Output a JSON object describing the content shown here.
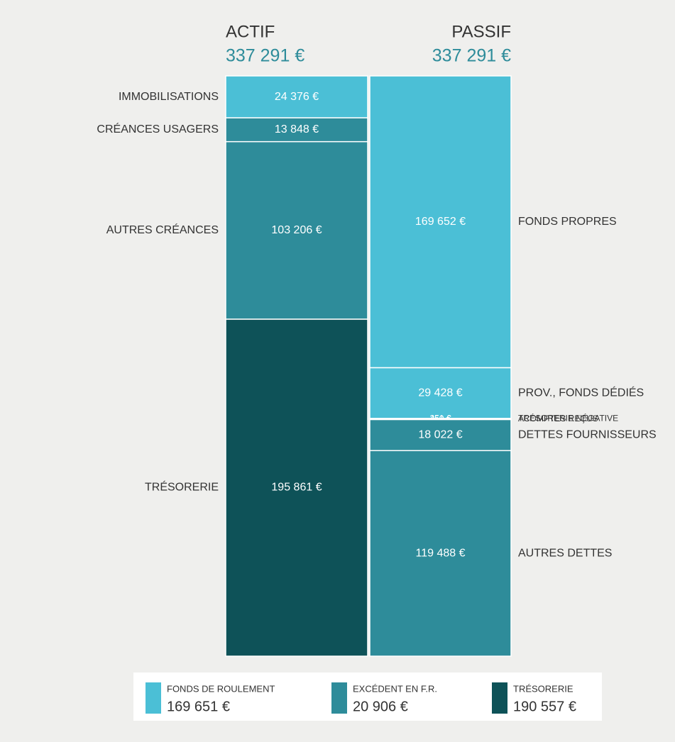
{
  "chart_data": {
    "type": "stacked-bar",
    "columns": [
      {
        "name": "ACTIF",
        "total": 337291,
        "total_label": "337 291 €",
        "segments": [
          {
            "name": "IMMOBILISATIONS",
            "value": 24376,
            "value_label": "24 376 €",
            "color": "#4bbfd6"
          },
          {
            "name": "CRÉANCES USAGERS",
            "value": 13848,
            "value_label": "13 848 €",
            "color": "#2e8c9a"
          },
          {
            "name": "AUTRES CRÉANCES",
            "value": 103206,
            "value_label": "103 206 €",
            "color": "#2e8c9a"
          },
          {
            "name": "TRÉSORERIE",
            "value": 195861,
            "value_label": "195 861 €",
            "color": "#0e5258"
          }
        ]
      },
      {
        "name": "PASSIF",
        "total": 337291,
        "total_label": "337 291 €",
        "segments": [
          {
            "name": "FONDS PROPRES",
            "value": 169652,
            "value_label": "169 652 €",
            "color": "#4bbfd6"
          },
          {
            "name": "PROV., FONDS DÉDIÉS",
            "value": 29428,
            "value_label": "29 428 €",
            "color": "#4bbfd6"
          },
          {
            "name": "TRÉSORERIE NÉGATIVE",
            "value": 251,
            "value_label": "251 €",
            "color": "#0e5258"
          },
          {
            "name": "ACOMPTES REÇUS",
            "value": 450,
            "value_label": "450 €",
            "color": "#2e8c9a"
          },
          {
            "name": "DETTES FOURNISSEURS",
            "value": 18022,
            "value_label": "18 022 €",
            "color": "#2e8c9a"
          },
          {
            "name": "AUTRES DETTES",
            "value": 119488,
            "value_label": "119 488 €",
            "color": "#2e8c9a"
          }
        ]
      }
    ],
    "legend": [
      {
        "name": "FONDS DE ROULEMENT",
        "value": 169651,
        "value_label": "169 651 €",
        "color": "#4bbfd6"
      },
      {
        "name": "EXCÉDENT EN F.R.",
        "value": 20906,
        "value_label": "20 906 €",
        "color": "#2e8c9a"
      },
      {
        "name": "TRÉSORERIE",
        "value": 190557,
        "value_label": "190 557 €",
        "color": "#0e5258"
      }
    ]
  }
}
